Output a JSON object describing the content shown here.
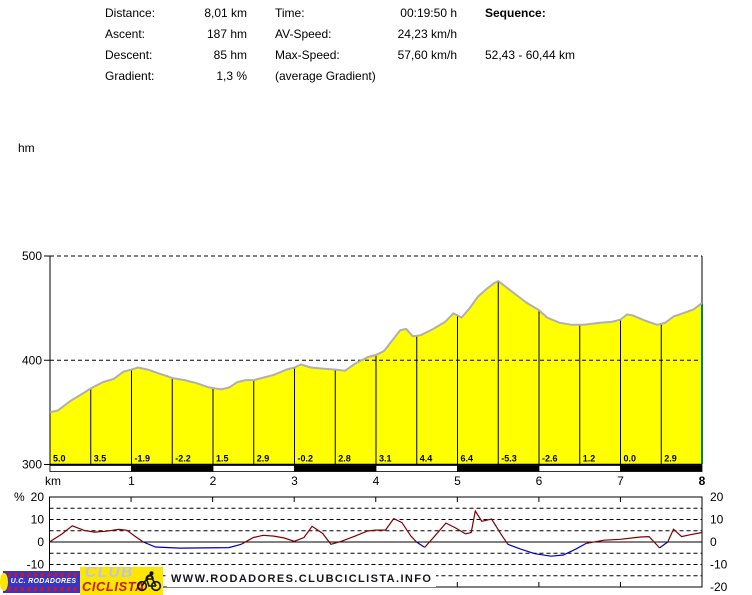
{
  "header": {
    "stats_left": [
      {
        "label": "Distance:",
        "value": "8,01 km"
      },
      {
        "label": "Ascent:",
        "value": "187 hm"
      },
      {
        "label": "Descent:",
        "value": "85 hm"
      },
      {
        "label": "Gradient:",
        "value": "1,3 %"
      }
    ],
    "stats_mid": [
      {
        "label": "Time:",
        "value": "00:19:50 h"
      },
      {
        "label": "AV-Speed:",
        "value": "24,23 km/h"
      },
      {
        "label": "Max-Speed:",
        "value": "57,60 km/h"
      },
      {
        "label": "(average Gradient)",
        "value": ""
      }
    ],
    "sequence": {
      "label": "Sequence:",
      "range": "52,43 - 60,44 km"
    }
  },
  "chart_data": [
    {
      "type": "area",
      "name": "elevation-profile",
      "y_unit_label": "hm",
      "x_unit_label": "km",
      "xlim": [
        0,
        8
      ],
      "ylim": [
        300,
        500
      ],
      "yticks": [
        300,
        400,
        500
      ],
      "xticks": [
        1,
        2,
        3,
        4,
        5,
        6,
        7,
        8
      ],
      "last_xtick_bold": true,
      "grid": "horizontal dashed at 400 and 500, solid baseline at 300",
      "fill_color": "#ffff00",
      "outline_color": "#b0b0b0",
      "end_marker_color": "#008060",
      "points_km_hm": [
        [
          0,
          350
        ],
        [
          0.1,
          352
        ],
        [
          0.25,
          361
        ],
        [
          0.4,
          368
        ],
        [
          0.5,
          373
        ],
        [
          0.65,
          379
        ],
        [
          0.78,
          382
        ],
        [
          0.9,
          389
        ],
        [
          1.0,
          391
        ],
        [
          1.08,
          393
        ],
        [
          1.2,
          391
        ],
        [
          1.35,
          387
        ],
        [
          1.5,
          383
        ],
        [
          1.65,
          381
        ],
        [
          1.8,
          378
        ],
        [
          1.95,
          374
        ],
        [
          2.1,
          372
        ],
        [
          2.2,
          374
        ],
        [
          2.3,
          379
        ],
        [
          2.4,
          381
        ],
        [
          2.5,
          381
        ],
        [
          2.6,
          383
        ],
        [
          2.75,
          386
        ],
        [
          2.9,
          391
        ],
        [
          3.0,
          393
        ],
        [
          3.08,
          396
        ],
        [
          3.2,
          393
        ],
        [
          3.35,
          392
        ],
        [
          3.5,
          391
        ],
        [
          3.62,
          390
        ],
        [
          3.75,
          397
        ],
        [
          3.9,
          403
        ],
        [
          4.0,
          405
        ],
        [
          4.1,
          409
        ],
        [
          4.2,
          419
        ],
        [
          4.3,
          429
        ],
        [
          4.37,
          430
        ],
        [
          4.45,
          423
        ],
        [
          4.55,
          424
        ],
        [
          4.7,
          430
        ],
        [
          4.85,
          437
        ],
        [
          4.95,
          445
        ],
        [
          5.05,
          441
        ],
        [
          5.15,
          450
        ],
        [
          5.25,
          461
        ],
        [
          5.35,
          468
        ],
        [
          5.45,
          474
        ],
        [
          5.5,
          476
        ],
        [
          5.6,
          470
        ],
        [
          5.7,
          464
        ],
        [
          5.85,
          455
        ],
        [
          6.0,
          448
        ],
        [
          6.1,
          441
        ],
        [
          6.25,
          436
        ],
        [
          6.4,
          434
        ],
        [
          6.55,
          434
        ],
        [
          6.75,
          436
        ],
        [
          6.9,
          437
        ],
        [
          7.0,
          439
        ],
        [
          7.08,
          444
        ],
        [
          7.15,
          443
        ],
        [
          7.3,
          438
        ],
        [
          7.45,
          434
        ],
        [
          7.55,
          436
        ],
        [
          7.65,
          442
        ],
        [
          7.8,
          446
        ],
        [
          7.9,
          449
        ],
        [
          8.0,
          455
        ]
      ],
      "segment_gradient_percent": {
        "interval_km": 0.5,
        "values": [
          5.0,
          3.5,
          -1.9,
          -2.2,
          1.5,
          2.9,
          -0.2,
          2.8,
          3.1,
          4.4,
          6.4,
          -5.3,
          -2.6,
          1.2,
          0.0,
          2.9
        ]
      },
      "scale_bar_km_colors": [
        "#ffffff",
        "#000000",
        "#ffffff",
        "#000000",
        "#ffffff",
        "#000000",
        "#ffffff",
        "#000000"
      ]
    },
    {
      "type": "line",
      "name": "gradient-percent",
      "y_unit_label": "%",
      "xlim": [
        0,
        8
      ],
      "ylim": [
        -20,
        20
      ],
      "yticks_left": [
        20,
        10,
        0,
        -10,
        -20
      ],
      "yticks_right": [
        20,
        10,
        0,
        -10,
        -20
      ],
      "grid_interval_percent": 5,
      "xticks": [
        1,
        2,
        3,
        4,
        5,
        6,
        7
      ],
      "positive_color": "#800000",
      "negative_color": "#0000bb",
      "points_km_percent": [
        [
          0,
          0
        ],
        [
          0.15,
          3.5
        ],
        [
          0.28,
          7.2
        ],
        [
          0.42,
          5.2
        ],
        [
          0.55,
          4.4
        ],
        [
          0.7,
          4.8
        ],
        [
          0.85,
          5.6
        ],
        [
          0.95,
          5.2
        ],
        [
          1.05,
          2.5
        ],
        [
          1.15,
          0
        ],
        [
          1.3,
          -2.2
        ],
        [
          1.6,
          -2.7
        ],
        [
          1.9,
          -2.6
        ],
        [
          2.2,
          -2.5
        ],
        [
          2.35,
          -1
        ],
        [
          2.5,
          2
        ],
        [
          2.62,
          3
        ],
        [
          2.75,
          2.6
        ],
        [
          2.88,
          1.8
        ],
        [
          3.0,
          0.3
        ],
        [
          3.12,
          2
        ],
        [
          3.22,
          7
        ],
        [
          3.35,
          3.8
        ],
        [
          3.45,
          -1
        ],
        [
          3.57,
          0.2
        ],
        [
          3.75,
          2.7
        ],
        [
          3.9,
          4.9
        ],
        [
          4.0,
          5.3
        ],
        [
          4.12,
          5.3
        ],
        [
          4.22,
          10.4
        ],
        [
          4.32,
          8.6
        ],
        [
          4.43,
          2.7
        ],
        [
          4.5,
          0
        ],
        [
          4.6,
          -2.4
        ],
        [
          4.72,
          2.5
        ],
        [
          4.86,
          8.4
        ],
        [
          4.98,
          6.2
        ],
        [
          5.1,
          3.6
        ],
        [
          5.17,
          4.2
        ],
        [
          5.22,
          13.8
        ],
        [
          5.3,
          9.2
        ],
        [
          5.42,
          10.2
        ],
        [
          5.54,
          3.2
        ],
        [
          5.62,
          -1
        ],
        [
          5.78,
          -3.2
        ],
        [
          5.95,
          -5.2
        ],
        [
          6.15,
          -6.3
        ],
        [
          6.3,
          -5.8
        ],
        [
          6.45,
          -3.2
        ],
        [
          6.58,
          -0.6
        ],
        [
          6.8,
          0.8
        ],
        [
          7.0,
          1.2
        ],
        [
          7.25,
          2.2
        ],
        [
          7.35,
          2.4
        ],
        [
          7.48,
          -2.6
        ],
        [
          7.58,
          0
        ],
        [
          7.65,
          5.7
        ],
        [
          7.75,
          2.4
        ],
        [
          7.85,
          3.2
        ],
        [
          8.0,
          4.2
        ]
      ]
    }
  ],
  "footer": {
    "logo": {
      "line1": "U.C. RODADORES",
      "word1": "CLUB",
      "word2": "CICLISTA"
    },
    "website": "WWW.RODADORES.CLUBCICLISTA.INFO"
  },
  "colors": {
    "background": "#ffffff",
    "text": "#000000",
    "profile_fill": "#ffff00",
    "profile_outline": "#b0b0b0",
    "grid": "#000000",
    "positive_line": "#800000",
    "negative_line": "#0000bb",
    "end_marker": "#008060",
    "logo_blue": "#3535c8",
    "logo_yellow": "#ffe600",
    "logo_red": "#d01818",
    "club_word_color": "#b9c6ea",
    "website_text": "#151520"
  }
}
